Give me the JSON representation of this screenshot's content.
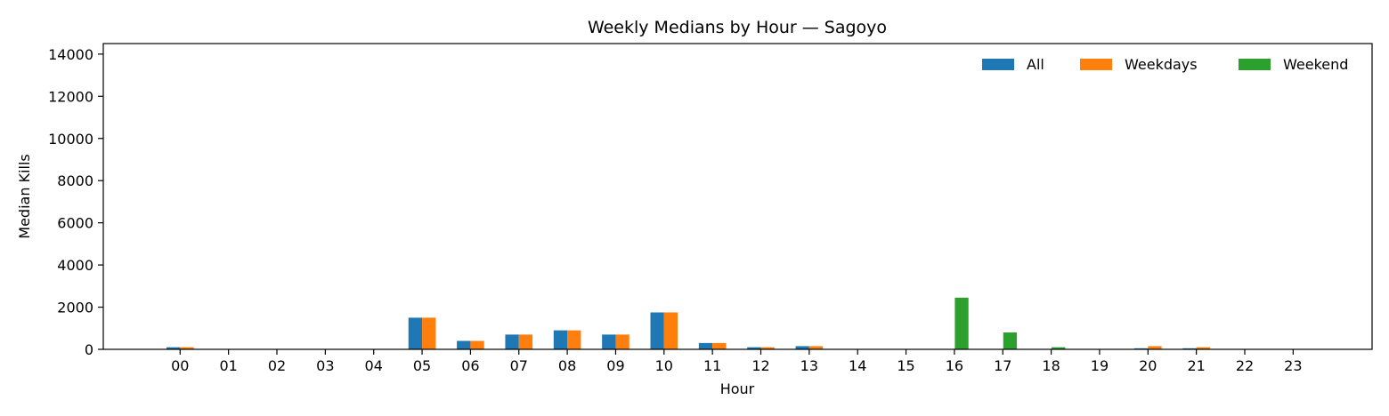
{
  "chart_data": {
    "type": "bar",
    "title": "Weekly Medians by Hour — Sagoyo",
    "xlabel": "Hour",
    "ylabel": "Median Kills",
    "categories": [
      "00",
      "01",
      "02",
      "03",
      "04",
      "05",
      "06",
      "07",
      "08",
      "09",
      "10",
      "11",
      "12",
      "13",
      "14",
      "15",
      "16",
      "17",
      "18",
      "19",
      "20",
      "21",
      "22",
      "23"
    ],
    "ylim": [
      0,
      14500
    ],
    "yticks": [
      0,
      2000,
      4000,
      6000,
      8000,
      10000,
      12000,
      14000
    ],
    "ytick_labels": [
      "0",
      "2000",
      "4000",
      "6000",
      "8000",
      "10000",
      "12000",
      "14000"
    ],
    "grid": false,
    "legend_position": "top-right",
    "series": [
      {
        "name": "All",
        "color": "#1f77b4",
        "values": [
          100,
          0,
          0,
          0,
          0,
          1500,
          400,
          700,
          900,
          700,
          1750,
          300,
          100,
          150,
          0,
          0,
          0,
          0,
          0,
          0,
          50,
          50,
          0,
          0
        ]
      },
      {
        "name": "Weekdays",
        "color": "#ff7f0e",
        "values": [
          100,
          0,
          0,
          0,
          0,
          1500,
          400,
          700,
          900,
          700,
          1750,
          300,
          100,
          150,
          0,
          0,
          0,
          0,
          0,
          0,
          150,
          100,
          0,
          0
        ]
      },
      {
        "name": "Weekend",
        "color": "#2ca02c",
        "values": [
          0,
          0,
          0,
          0,
          0,
          0,
          0,
          0,
          0,
          0,
          0,
          0,
          0,
          0,
          0,
          0,
          2450,
          800,
          100,
          0,
          0,
          0,
          0,
          0
        ]
      }
    ]
  }
}
